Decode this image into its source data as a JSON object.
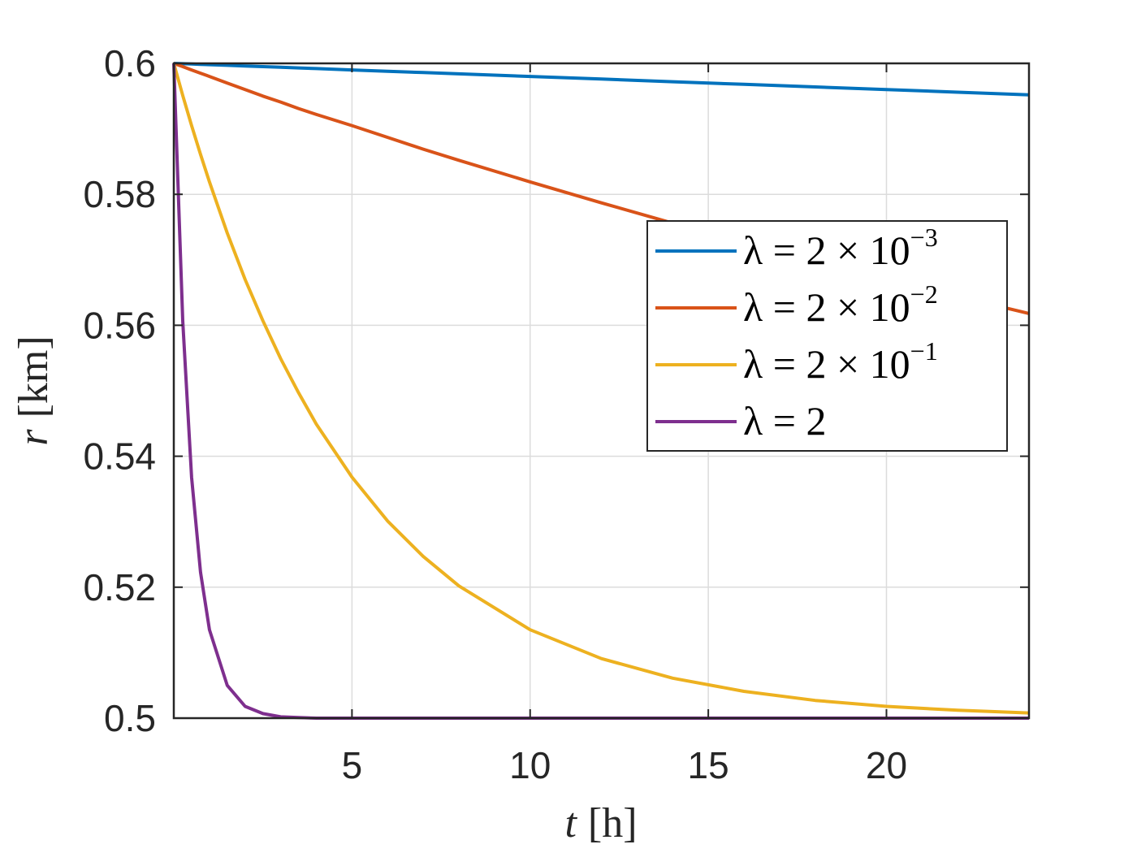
{
  "chart_data": {
    "type": "line",
    "xlabel": {
      "var": "t",
      "unit": "[h]"
    },
    "ylabel": {
      "var": "r",
      "unit": "[km]"
    },
    "xlim": [
      0,
      24
    ],
    "ylim": [
      0.5,
      0.6
    ],
    "xticks": [
      5,
      10,
      15,
      20
    ],
    "xtick_labels": [
      "5",
      "10",
      "15",
      "20"
    ],
    "yticks": [
      0.5,
      0.52,
      0.54,
      0.56,
      0.58,
      0.6
    ],
    "ytick_labels": [
      "0.5",
      "0.52",
      "0.54",
      "0.56",
      "0.58",
      "0.6"
    ],
    "grid": true,
    "legend_position": "right",
    "series": [
      {
        "name": {
          "base": "λ = 2 × 10",
          "exp": "−3"
        },
        "lambda": 0.002,
        "color": "#0072BD"
      },
      {
        "name": {
          "base": "λ = 2 × 10",
          "exp": "−2"
        },
        "lambda": 0.02,
        "color": "#D95319"
      },
      {
        "name": {
          "base": "λ = 2 × 10",
          "exp": "−1"
        },
        "lambda": 0.2,
        "color": "#EDB120"
      },
      {
        "name": {
          "base": "λ = 2",
          "exp": ""
        },
        "lambda": 2,
        "color": "#7E2F8E"
      }
    ],
    "sample_x": [
      0,
      0.25,
      0.5,
      0.75,
      1,
      1.5,
      2,
      2.5,
      3,
      3.5,
      4,
      5,
      6,
      7,
      8,
      10,
      12,
      14,
      16,
      18,
      20,
      22,
      24
    ],
    "sample_y": [
      [
        0.6,
        0.59995,
        0.5999,
        0.59985,
        0.5998,
        0.5997,
        0.5996,
        0.5995,
        0.5994,
        0.5993,
        0.5992,
        0.599,
        0.5988,
        0.5986,
        0.5984,
        0.598,
        0.5976,
        0.5972,
        0.5968,
        0.5964,
        0.596,
        0.5956,
        0.5952
      ],
      [
        0.6,
        0.5995,
        0.599,
        0.5985,
        0.598,
        0.597,
        0.596,
        0.595,
        0.5941,
        0.5931,
        0.5922,
        0.5905,
        0.5887,
        0.5869,
        0.5852,
        0.5819,
        0.5787,
        0.5756,
        0.5726,
        0.5698,
        0.567,
        0.5644,
        0.5618
      ],
      [
        0.6,
        0.5951,
        0.5905,
        0.5861,
        0.5819,
        0.5741,
        0.567,
        0.5607,
        0.5549,
        0.5497,
        0.5449,
        0.5368,
        0.5301,
        0.5247,
        0.5202,
        0.5135,
        0.5091,
        0.5061,
        0.5041,
        0.5027,
        0.5018,
        0.5012,
        0.5008
      ],
      [
        0.6,
        0.5607,
        0.5368,
        0.5223,
        0.5135,
        0.505,
        0.5018,
        0.5007,
        0.5002,
        0.5001,
        0.5,
        0.5,
        0.5,
        0.5,
        0.5,
        0.5,
        0.5,
        0.5,
        0.5,
        0.5,
        0.5,
        0.5,
        0.5
      ]
    ]
  }
}
